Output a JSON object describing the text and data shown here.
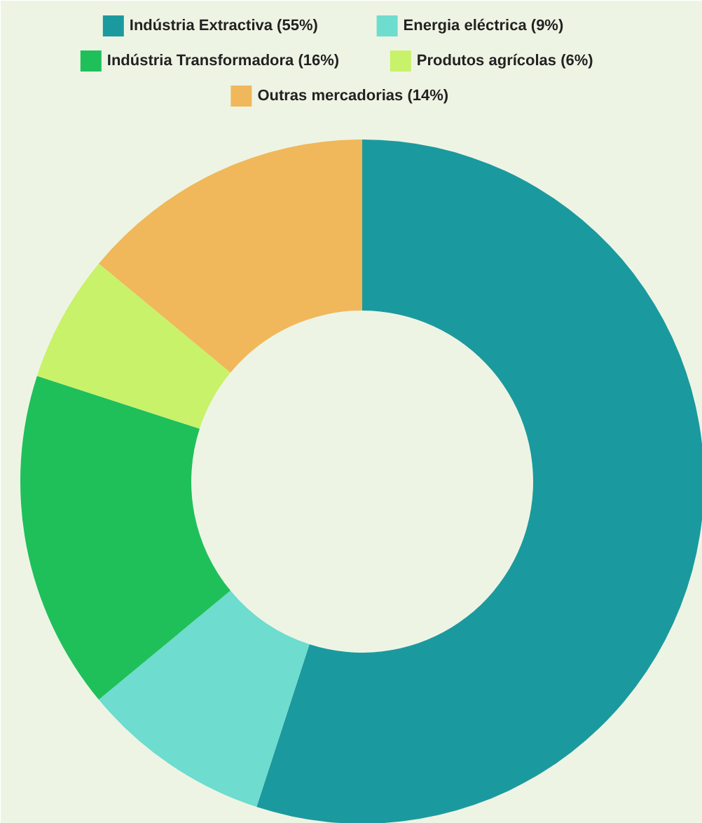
{
  "chart_data": {
    "type": "donut",
    "categories": [
      "Indústria Extractiva (55%)",
      "Energia eléctrica (9%)",
      "Indústria Transformadora (16%)",
      "Produtos agrícolas (6%)",
      "Outras mercadorias (14%)"
    ],
    "values": [
      55,
      9,
      16,
      6,
      14
    ],
    "colors": [
      "#1a9a9e",
      "#6edccf",
      "#1fc05a",
      "#c8f26a",
      "#f0b85a"
    ],
    "legend": "top"
  }
}
